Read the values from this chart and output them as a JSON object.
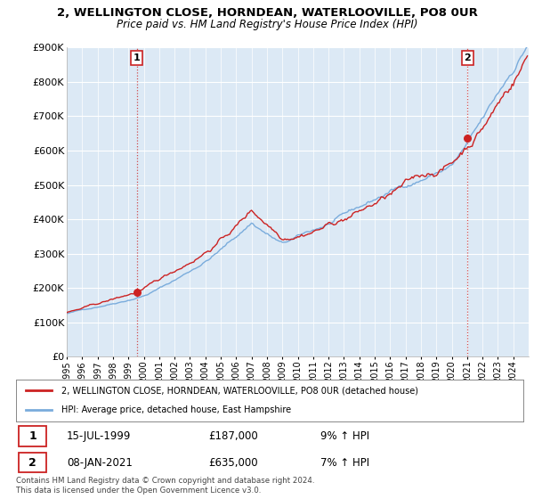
{
  "title_line1": "2, WELLINGTON CLOSE, HORNDEAN, WATERLOOVILLE, PO8 0UR",
  "title_line2": "Price paid vs. HM Land Registry's House Price Index (HPI)",
  "ylim": [
    0,
    900000
  ],
  "yticks": [
    0,
    100000,
    200000,
    300000,
    400000,
    500000,
    600000,
    700000,
    800000,
    900000
  ],
  "ytick_labels": [
    "£0",
    "£100K",
    "£200K",
    "£300K",
    "£400K",
    "£500K",
    "£600K",
    "£700K",
    "£800K",
    "£900K"
  ],
  "hpi_color": "#7aacdc",
  "price_color": "#cc2222",
  "sale1_date": 1999.54,
  "sale1_price": 187000,
  "sale2_date": 2021.03,
  "sale2_price": 635000,
  "legend_price_label": "2, WELLINGTON CLOSE, HORNDEAN, WATERLOOVILLE, PO8 0UR (detached house)",
  "legend_hpi_label": "HPI: Average price, detached house, East Hampshire",
  "footer": "Contains HM Land Registry data © Crown copyright and database right 2024.\nThis data is licensed under the Open Government Licence v3.0.",
  "background_color": "#ffffff",
  "plot_bg_color": "#dce9f5",
  "grid_color": "#ffffff"
}
